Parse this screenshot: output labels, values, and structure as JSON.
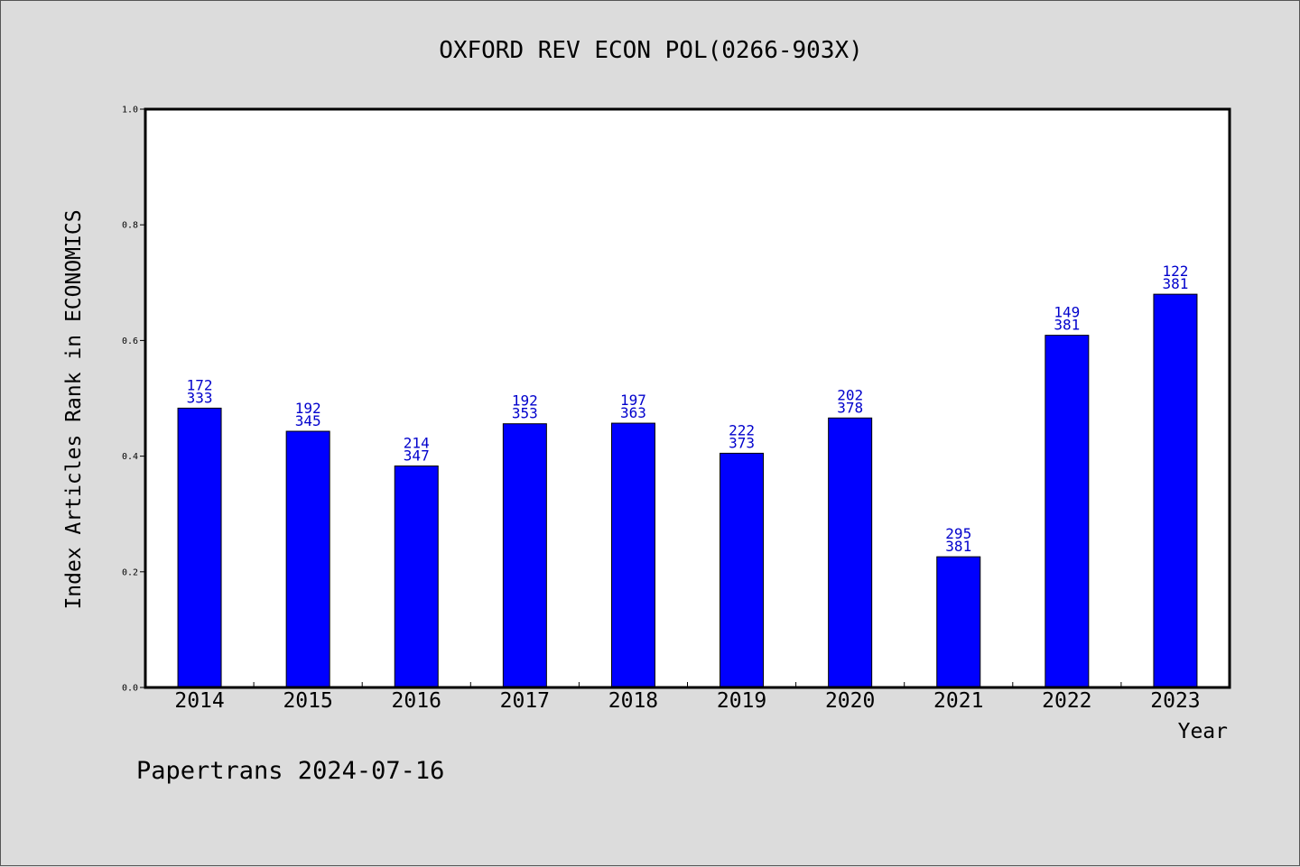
{
  "chart_data": {
    "type": "bar",
    "title": "OXFORD REV ECON POL(0266-903X)",
    "xlabel": "Year",
    "ylabel": "Index Articles Rank in ECONOMICS",
    "ylim": [
      0,
      1.0
    ],
    "yticks": [
      "0.0",
      "0.2",
      "0.4",
      "0.6",
      "0.8",
      "1.0"
    ],
    "grid": false,
    "categories": [
      "2014",
      "2015",
      "2016",
      "2017",
      "2018",
      "2019",
      "2020",
      "2021",
      "2022",
      "2023"
    ],
    "values": [
      0.483,
      0.443,
      0.383,
      0.456,
      0.457,
      0.405,
      0.466,
      0.226,
      0.609,
      0.68
    ],
    "labels_top": [
      "172",
      "192",
      "214",
      "192",
      "197",
      "222",
      "202",
      "295",
      "149",
      "122"
    ],
    "labels_bottom": [
      "333",
      "345",
      "347",
      "353",
      "363",
      "373",
      "378",
      "381",
      "381",
      "381"
    ],
    "bar_color": "#0000ff",
    "label_color": "#0000cc"
  },
  "footer": "Papertrans 2024-07-16"
}
